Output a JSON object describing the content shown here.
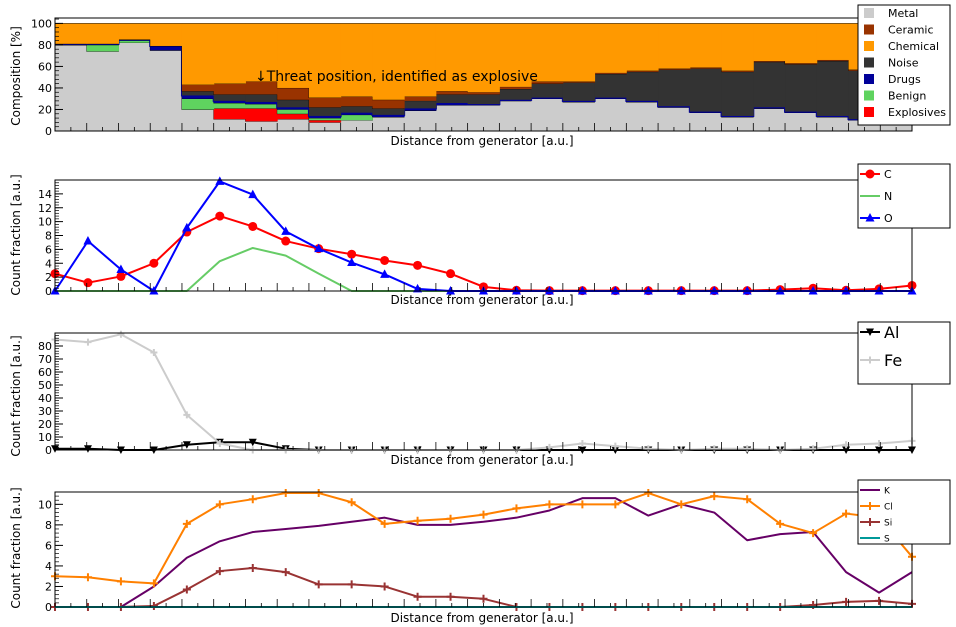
{
  "charts": [
    {
      "ylabel": "Composition [%]",
      "xlabel": "Distance from generator [a.u.]",
      "annotation": "↓Threat position, identified as explosive",
      "legend": [
        "Metal",
        "Ceramic",
        "Chemical",
        "Noise",
        "Drugs",
        "Benign",
        "Explosives"
      ]
    },
    {
      "ylabel": "Count fraction [a.u.]",
      "xlabel": "Distance from generator [a.u.]",
      "legend": [
        "C",
        "N",
        "O"
      ]
    },
    {
      "ylabel": "Count fraction [a.u.]",
      "xlabel": "Distance from generator [a.u.]",
      "legend": [
        "Al",
        "Fe"
      ]
    },
    {
      "ylabel": "Count fraction [a.u.]",
      "xlabel": "Distance from generator [a.u.]",
      "legend": [
        "K",
        "Cl",
        "Si",
        "S"
      ]
    }
  ],
  "chart_data": [
    {
      "type": "area",
      "stacked": true,
      "ylabel": "Composition [%]",
      "xlabel": "Distance from generator [a.u.]",
      "ylim": [
        0,
        105
      ],
      "yticks": [
        0,
        20,
        40,
        60,
        80,
        100
      ],
      "annotation": "↓Threat position, identified as explosive",
      "x": [
        1,
        2,
        3,
        4,
        5,
        6,
        7,
        8,
        9,
        10,
        11,
        12,
        13,
        14,
        15,
        16,
        17,
        18,
        19,
        20,
        21,
        22,
        23,
        24,
        25,
        26,
        27
      ],
      "series": [
        {
          "name": "Metal",
          "color": "#cccccc",
          "values": [
            80,
            74,
            82,
            75,
            20,
            11,
            9,
            11,
            8,
            10,
            13,
            19,
            24,
            24,
            28,
            30,
            27,
            30,
            27,
            22,
            17,
            13,
            21,
            17,
            13,
            10,
            10
          ]
        },
        {
          "name": "Explosives",
          "color": "#ff0000",
          "values": [
            0,
            0,
            0,
            0,
            0,
            10,
            12,
            5,
            2,
            0,
            0,
            0,
            0,
            0,
            0,
            0,
            0,
            0,
            0,
            0,
            0,
            0,
            0,
            0,
            0,
            0,
            0
          ]
        },
        {
          "name": "Benign",
          "color": "#5fd35f",
          "values": [
            0,
            6,
            2,
            0,
            10,
            5,
            4,
            4,
            2,
            5,
            0,
            0,
            0,
            0,
            0,
            0,
            0,
            0,
            0,
            0,
            0,
            0,
            0,
            0,
            0,
            0,
            0
          ]
        },
        {
          "name": "Drugs",
          "color": "#000099",
          "values": [
            1,
            1,
            1,
            4,
            3,
            2,
            2,
            2,
            2,
            2,
            2,
            2,
            2,
            1,
            1,
            1,
            1,
            1,
            1,
            1,
            1,
            1,
            1,
            1,
            1,
            1,
            1
          ]
        },
        {
          "name": "Noise",
          "color": "#333333",
          "values": [
            0,
            0,
            0,
            0,
            4,
            6,
            7,
            7,
            8,
            6,
            6,
            7,
            8,
            9,
            10,
            13,
            17,
            22,
            27,
            34,
            40,
            41,
            42,
            44,
            51,
            45,
            55
          ]
        },
        {
          "name": "Ceramic",
          "color": "#993300",
          "values": [
            0,
            0,
            0,
            0,
            6,
            10,
            12,
            11,
            9,
            9,
            8,
            4,
            3,
            2,
            2,
            2,
            1,
            1,
            1,
            1,
            1,
            1,
            1,
            1,
            1,
            1,
            1
          ]
        },
        {
          "name": "Chemical",
          "color": "#ff9900",
          "values": [
            19,
            19,
            15,
            21,
            57,
            56,
            54,
            60,
            69,
            68,
            71,
            68,
            63,
            64,
            59,
            54,
            54,
            46,
            44,
            42,
            41,
            44,
            35,
            37,
            34,
            43,
            33
          ]
        }
      ]
    },
    {
      "type": "line",
      "ylabel": "Count fraction [a.u.]",
      "xlabel": "Distance from generator [a.u.]",
      "ylim": [
        0,
        16
      ],
      "yticks": [
        0,
        2,
        4,
        6,
        8,
        10,
        12,
        14
      ],
      "x": [
        1,
        2,
        3,
        4,
        5,
        6,
        7,
        8,
        9,
        10,
        11,
        12,
        13,
        14,
        15,
        16,
        17,
        18,
        19,
        20,
        21,
        22,
        23,
        24,
        25,
        26,
        27
      ],
      "series": [
        {
          "name": "C",
          "color": "#ff0000",
          "marker": "circle",
          "values": [
            2.5,
            1.2,
            2.1,
            4.0,
            8.5,
            10.8,
            9.3,
            7.2,
            6.1,
            5.3,
            4.4,
            3.7,
            2.5,
            0.6,
            0.1,
            0.05,
            0.05,
            0.05,
            0.05,
            0.05,
            0.05,
            0.05,
            0.2,
            0.4,
            0.1,
            0.3,
            0.8
          ]
        },
        {
          "name": "N",
          "color": "#66cc66",
          "marker": "none",
          "values": [
            0,
            0,
            0,
            0,
            0,
            4.3,
            6.2,
            5.1,
            2.5,
            0,
            0,
            0,
            0,
            0,
            0,
            0,
            0,
            0,
            0,
            0,
            0,
            0,
            0,
            0,
            0,
            0,
            0
          ]
        },
        {
          "name": "O",
          "color": "#0000ff",
          "marker": "triangle",
          "values": [
            0,
            7.2,
            3.1,
            0,
            9.1,
            15.8,
            13.9,
            8.6,
            6.1,
            4.1,
            2.4,
            0.3,
            0,
            0,
            0,
            0,
            0,
            0,
            0,
            0,
            0,
            0,
            0,
            0,
            0,
            0,
            0
          ]
        }
      ]
    },
    {
      "type": "line",
      "ylabel": "Count fraction [a.u.]",
      "xlabel": "Distance from generator [a.u.]",
      "ylim": [
        0,
        90
      ],
      "yticks": [
        0,
        10,
        20,
        30,
        40,
        50,
        60,
        70,
        80
      ],
      "x": [
        1,
        2,
        3,
        4,
        5,
        6,
        7,
        8,
        9,
        10,
        11,
        12,
        13,
        14,
        15,
        16,
        17,
        18,
        19,
        20,
        21,
        22,
        23,
        24,
        25,
        26,
        27
      ],
      "series": [
        {
          "name": "Al",
          "color": "#000000",
          "marker": "triangle-down",
          "values": [
            1,
            1,
            0,
            0,
            4,
            6,
            6,
            1,
            0,
            0,
            0,
            0,
            0,
            0,
            0,
            0,
            0,
            0,
            0,
            0,
            0,
            0,
            0,
            0,
            0,
            0,
            0
          ]
        },
        {
          "name": "Fe",
          "color": "#cccccc",
          "marker": "star",
          "values": [
            85,
            83,
            89,
            75,
            27,
            5,
            0,
            0,
            0,
            0,
            0,
            0,
            0,
            0,
            0,
            2,
            5,
            3,
            1,
            0,
            1,
            1,
            0,
            1,
            4,
            5,
            7
          ]
        }
      ]
    },
    {
      "type": "line",
      "ylabel": "Count fraction [a.u.]",
      "xlabel": "Distance from generator [a.u.]",
      "ylim": [
        0,
        11.2
      ],
      "yticks": [
        0,
        2,
        4,
        6,
        8,
        10
      ],
      "x": [
        1,
        2,
        3,
        4,
        5,
        6,
        7,
        8,
        9,
        10,
        11,
        12,
        13,
        14,
        15,
        16,
        17,
        18,
        19,
        20,
        21,
        22,
        23,
        24,
        25,
        26,
        27
      ],
      "series": [
        {
          "name": "K",
          "color": "#660066",
          "marker": "none",
          "values": [
            0,
            0,
            0,
            2.0,
            4.8,
            6.4,
            7.3,
            7.6,
            7.9,
            8.3,
            8.7,
            8.0,
            8.0,
            8.3,
            8.7,
            9.4,
            10.6,
            10.6,
            8.9,
            10.0,
            9.2,
            6.5,
            7.1,
            7.3,
            3.4,
            1.4,
            3.4
          ]
        },
        {
          "name": "Cl",
          "color": "#ff8000",
          "marker": "plus",
          "values": [
            3.0,
            2.9,
            2.5,
            2.3,
            8.1,
            10.0,
            10.5,
            11.1,
            11.1,
            10.2,
            8.1,
            8.4,
            8.6,
            9.0,
            9.6,
            10.0,
            10.0,
            10.0,
            11.1,
            10.0,
            10.8,
            10.5,
            8.1,
            7.2,
            9.1,
            8.7,
            4.9
          ]
        },
        {
          "name": "Si",
          "color": "#993333",
          "marker": "plus",
          "values": [
            0,
            0,
            0,
            0.1,
            1.7,
            3.5,
            3.8,
            3.4,
            2.2,
            2.2,
            2.0,
            1.0,
            1.0,
            0.8,
            0,
            0,
            0,
            0,
            0,
            0,
            0,
            0,
            0,
            0.2,
            0.5,
            0.6,
            0.3
          ]
        },
        {
          "name": "S",
          "color": "#009999",
          "marker": "none",
          "values": [
            0,
            0,
            0,
            0,
            0,
            0,
            0,
            0,
            0,
            0,
            0,
            0,
            0,
            0,
            0,
            0,
            0,
            0,
            0,
            0,
            0,
            0,
            0,
            0,
            0,
            0,
            0
          ]
        }
      ]
    }
  ]
}
